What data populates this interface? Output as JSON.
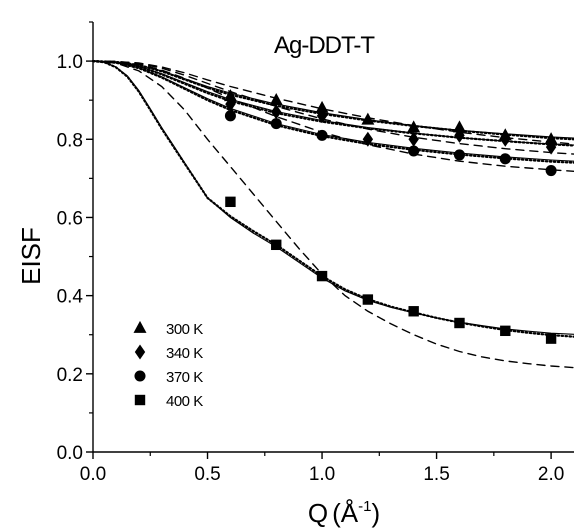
{
  "chart_data": {
    "type": "scatter",
    "title": "Ag-DDT-T",
    "xlabel": "Q(Å⁻¹)",
    "xlabel_main": "Q",
    "xlabel_open": "(Å",
    "xlabel_sup": "-1",
    "xlabel_close": ")",
    "ylabel": "EISF",
    "xlim": [
      0.0,
      2.1
    ],
    "ylim": [
      0.0,
      1.1
    ],
    "x_ticks": [
      {
        "value": 0.0,
        "label": "0.0"
      },
      {
        "value": 0.5,
        "label": "0.5"
      },
      {
        "value": 1.0,
        "label": "1.0"
      },
      {
        "value": 1.5,
        "label": "1.5"
      },
      {
        "value": 2.0,
        "label": "2.0"
      }
    ],
    "y_ticks": [
      {
        "value": 0.0,
        "label": "0.0"
      },
      {
        "value": 0.2,
        "label": "0.2"
      },
      {
        "value": 0.4,
        "label": "0.4"
      },
      {
        "value": 0.6,
        "label": "0.6"
      },
      {
        "value": 0.8,
        "label": "0.8"
      },
      {
        "value": 1.0,
        "label": "1.0"
      }
    ],
    "grid": false,
    "legend_position": "bottom-left",
    "series": [
      {
        "name": "300 K",
        "marker": "triangle",
        "x": [
          0.6,
          0.8,
          1.0,
          1.2,
          1.4,
          1.6,
          1.8,
          2.0
        ],
        "y": [
          0.91,
          0.9,
          0.88,
          0.85,
          0.83,
          0.83,
          0.81,
          0.8
        ],
        "fits": {
          "solid": [
            [
              0.0,
              1.0
            ],
            [
              0.1,
              0.998
            ],
            [
              0.2,
              0.99
            ],
            [
              0.3,
              0.975
            ],
            [
              0.4,
              0.955
            ],
            [
              0.5,
              0.935
            ],
            [
              0.6,
              0.918
            ],
            [
              0.8,
              0.89
            ],
            [
              1.0,
              0.868
            ],
            [
              1.2,
              0.85
            ],
            [
              1.4,
              0.835
            ],
            [
              1.6,
              0.823
            ],
            [
              1.8,
              0.814
            ],
            [
              2.0,
              0.806
            ],
            [
              2.1,
              0.803
            ]
          ],
          "dotted": [
            [
              0.0,
              1.0
            ],
            [
              0.1,
              0.998
            ],
            [
              0.2,
              0.99
            ],
            [
              0.3,
              0.974
            ],
            [
              0.4,
              0.953
            ],
            [
              0.5,
              0.932
            ],
            [
              0.6,
              0.914
            ],
            [
              0.8,
              0.886
            ],
            [
              1.0,
              0.865
            ],
            [
              1.2,
              0.848
            ],
            [
              1.4,
              0.834
            ],
            [
              1.6,
              0.822
            ],
            [
              1.8,
              0.812
            ],
            [
              2.0,
              0.803
            ],
            [
              2.1,
              0.8
            ]
          ],
          "dashed": [
            [
              0.0,
              1.0
            ],
            [
              0.1,
              0.999
            ],
            [
              0.2,
              0.995
            ],
            [
              0.3,
              0.985
            ],
            [
              0.4,
              0.97
            ],
            [
              0.5,
              0.952
            ],
            [
              0.6,
              0.935
            ],
            [
              0.8,
              0.905
            ],
            [
              1.0,
              0.878
            ],
            [
              1.2,
              0.855
            ],
            [
              1.4,
              0.835
            ],
            [
              1.6,
              0.818
            ],
            [
              1.8,
              0.804
            ],
            [
              2.0,
              0.793
            ],
            [
              2.1,
              0.788
            ]
          ]
        }
      },
      {
        "name": "340 K",
        "marker": "diamond",
        "x": [
          0.6,
          0.8,
          1.0,
          1.2,
          1.4,
          1.6,
          1.8,
          2.0
        ],
        "y": [
          0.89,
          0.87,
          0.86,
          0.8,
          0.8,
          0.81,
          0.8,
          0.78
        ],
        "fits": {
          "solid": [
            [
              0.0,
              1.0
            ],
            [
              0.1,
              0.997
            ],
            [
              0.2,
              0.987
            ],
            [
              0.3,
              0.968
            ],
            [
              0.4,
              0.945
            ],
            [
              0.5,
              0.922
            ],
            [
              0.6,
              0.902
            ],
            [
              0.8,
              0.871
            ],
            [
              1.0,
              0.848
            ],
            [
              1.2,
              0.83
            ],
            [
              1.4,
              0.816
            ],
            [
              1.6,
              0.804
            ],
            [
              1.8,
              0.795
            ],
            [
              2.0,
              0.788
            ],
            [
              2.1,
              0.785
            ]
          ],
          "dotted": [
            [
              0.0,
              1.0
            ],
            [
              0.1,
              0.997
            ],
            [
              0.2,
              0.986
            ],
            [
              0.3,
              0.966
            ],
            [
              0.4,
              0.942
            ],
            [
              0.5,
              0.918
            ],
            [
              0.6,
              0.898
            ],
            [
              0.8,
              0.867
            ],
            [
              1.0,
              0.845
            ],
            [
              1.2,
              0.828
            ],
            [
              1.4,
              0.815
            ],
            [
              1.6,
              0.804
            ],
            [
              1.8,
              0.795
            ],
            [
              2.0,
              0.787
            ],
            [
              2.1,
              0.784
            ]
          ],
          "dashed": [
            [
              0.0,
              1.0
            ],
            [
              0.1,
              0.999
            ],
            [
              0.2,
              0.994
            ],
            [
              0.3,
              0.982
            ],
            [
              0.4,
              0.964
            ],
            [
              0.5,
              0.943
            ],
            [
              0.6,
              0.922
            ],
            [
              0.8,
              0.884
            ],
            [
              1.0,
              0.852
            ],
            [
              1.2,
              0.826
            ],
            [
              1.4,
              0.805
            ],
            [
              1.6,
              0.789
            ],
            [
              1.8,
              0.776
            ],
            [
              2.0,
              0.766
            ],
            [
              2.1,
              0.762
            ]
          ]
        }
      },
      {
        "name": "370 K",
        "marker": "circle",
        "x": [
          0.6,
          0.8,
          1.0,
          1.4,
          1.6,
          1.8,
          2.0
        ],
        "y": [
          0.86,
          0.84,
          0.81,
          0.77,
          0.76,
          0.75,
          0.72
        ],
        "fits": {
          "solid": [
            [
              0.0,
              1.0
            ],
            [
              0.1,
              0.996
            ],
            [
              0.2,
              0.983
            ],
            [
              0.3,
              0.96
            ],
            [
              0.4,
              0.932
            ],
            [
              0.5,
              0.904
            ],
            [
              0.6,
              0.879
            ],
            [
              0.8,
              0.84
            ],
            [
              1.0,
              0.812
            ],
            [
              1.2,
              0.792
            ],
            [
              1.4,
              0.777
            ],
            [
              1.6,
              0.765
            ],
            [
              1.8,
              0.755
            ],
            [
              2.0,
              0.747
            ],
            [
              2.1,
              0.744
            ]
          ],
          "dotted": [
            [
              0.0,
              1.0
            ],
            [
              0.1,
              0.996
            ],
            [
              0.2,
              0.982
            ],
            [
              0.3,
              0.958
            ],
            [
              0.4,
              0.929
            ],
            [
              0.5,
              0.9
            ],
            [
              0.6,
              0.875
            ],
            [
              0.8,
              0.836
            ],
            [
              1.0,
              0.808
            ],
            [
              1.2,
              0.788
            ],
            [
              1.4,
              0.773
            ],
            [
              1.6,
              0.761
            ],
            [
              1.8,
              0.751
            ],
            [
              2.0,
              0.743
            ],
            [
              2.1,
              0.74
            ]
          ],
          "dashed": [
            [
              0.0,
              1.0
            ],
            [
              0.1,
              0.998
            ],
            [
              0.2,
              0.992
            ],
            [
              0.3,
              0.977
            ],
            [
              0.4,
              0.956
            ],
            [
              0.5,
              0.931
            ],
            [
              0.6,
              0.905
            ],
            [
              0.8,
              0.858
            ],
            [
              1.0,
              0.818
            ],
            [
              1.2,
              0.786
            ],
            [
              1.4,
              0.762
            ],
            [
              1.6,
              0.744
            ],
            [
              1.8,
              0.731
            ],
            [
              2.0,
              0.722
            ],
            [
              2.1,
              0.718
            ]
          ]
        }
      },
      {
        "name": "400 K",
        "marker": "square",
        "x": [
          0.6,
          0.8,
          1.0,
          1.2,
          1.4,
          1.6,
          1.8,
          2.0
        ],
        "y": [
          0.64,
          0.53,
          0.45,
          0.39,
          0.36,
          0.33,
          0.31,
          0.29
        ],
        "fits": {
          "solid": [
            [
              0.0,
              1.0
            ],
            [
              0.05,
              0.997
            ],
            [
              0.1,
              0.985
            ],
            [
              0.15,
              0.962
            ],
            [
              0.2,
              0.925
            ],
            [
              0.25,
              0.878
            ],
            [
              0.3,
              0.83
            ],
            [
              0.35,
              0.785
            ],
            [
              0.4,
              0.74
            ],
            [
              0.45,
              0.695
            ],
            [
              0.5,
              0.65
            ],
            [
              0.6,
              0.6
            ],
            [
              0.7,
              0.56
            ],
            [
              0.8,
              0.525
            ],
            [
              0.9,
              0.485
            ],
            [
              1.0,
              0.445
            ],
            [
              1.1,
              0.412
            ],
            [
              1.2,
              0.388
            ],
            [
              1.3,
              0.37
            ],
            [
              1.4,
              0.356
            ],
            [
              1.5,
              0.343
            ],
            [
              1.6,
              0.332
            ],
            [
              1.7,
              0.323
            ],
            [
              1.8,
              0.315
            ],
            [
              1.9,
              0.309
            ],
            [
              2.0,
              0.304
            ],
            [
              2.1,
              0.301
            ]
          ],
          "dotted": [
            [
              0.0,
              1.0
            ],
            [
              0.05,
              0.997
            ],
            [
              0.1,
              0.984
            ],
            [
              0.15,
              0.96
            ],
            [
              0.2,
              0.922
            ],
            [
              0.25,
              0.875
            ],
            [
              0.3,
              0.827
            ],
            [
              0.35,
              0.782
            ],
            [
              0.4,
              0.738
            ],
            [
              0.45,
              0.694
            ],
            [
              0.5,
              0.65
            ],
            [
              0.6,
              0.603
            ],
            [
              0.7,
              0.565
            ],
            [
              0.8,
              0.53
            ],
            [
              0.9,
              0.49
            ],
            [
              1.0,
              0.45
            ],
            [
              1.1,
              0.416
            ],
            [
              1.2,
              0.391
            ],
            [
              1.3,
              0.372
            ],
            [
              1.4,
              0.357
            ],
            [
              1.5,
              0.343
            ],
            [
              1.6,
              0.331
            ],
            [
              1.7,
              0.321
            ],
            [
              1.8,
              0.312
            ],
            [
              1.9,
              0.305
            ],
            [
              2.0,
              0.299
            ],
            [
              2.1,
              0.295
            ]
          ],
          "dashed": [
            [
              0.0,
              1.0
            ],
            [
              0.1,
              0.995
            ],
            [
              0.2,
              0.975
            ],
            [
              0.3,
              0.935
            ],
            [
              0.4,
              0.875
            ],
            [
              0.5,
              0.8
            ],
            [
              0.6,
              0.73
            ],
            [
              0.7,
              0.66
            ],
            [
              0.8,
              0.59
            ],
            [
              0.9,
              0.52
            ],
            [
              1.0,
              0.455
            ],
            [
              1.1,
              0.4
            ],
            [
              1.2,
              0.36
            ],
            [
              1.3,
              0.328
            ],
            [
              1.4,
              0.3
            ],
            [
              1.5,
              0.276
            ],
            [
              1.6,
              0.257
            ],
            [
              1.7,
              0.243
            ],
            [
              1.8,
              0.233
            ],
            [
              1.9,
              0.226
            ],
            [
              2.0,
              0.22
            ],
            [
              2.1,
              0.216
            ]
          ]
        }
      }
    ]
  }
}
